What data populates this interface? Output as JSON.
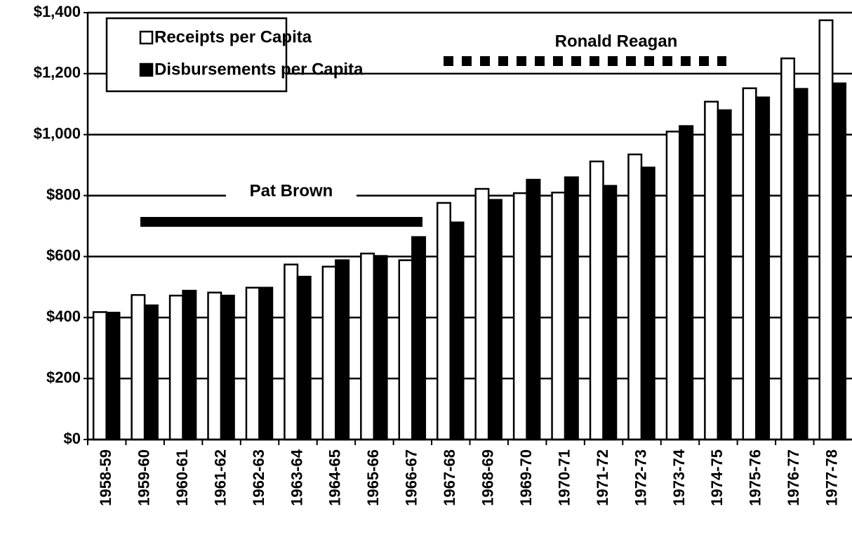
{
  "chart_data": {
    "type": "bar",
    "categories": [
      "1958-59",
      "1959-60",
      "1960-61",
      "1961-62",
      "1962-63",
      "1963-64",
      "1964-65",
      "1965-66",
      "1966-67",
      "1967-68",
      "1968-69",
      "1969-70",
      "1970-71",
      "1971-72",
      "1972-73",
      "1973-74",
      "1974-75",
      "1975-76",
      "1976-77",
      "1977-78"
    ],
    "series": [
      {
        "name": "Receipts per Capita",
        "color": "#ffffff",
        "values": [
          418,
          474,
          472,
          482,
          498,
          574,
          567,
          610,
          588,
          776,
          822,
          808,
          810,
          912,
          935,
          1010,
          1108,
          1152,
          1250,
          1375
        ]
      },
      {
        "name": "Disbursements per Capita",
        "color": "#000000",
        "values": [
          416,
          440,
          488,
          472,
          498,
          534,
          588,
          602,
          664,
          712,
          786,
          852,
          860,
          832,
          892,
          1028,
          1080,
          1122,
          1150,
          1168
        ]
      }
    ],
    "ylim": [
      0,
      1400
    ],
    "yticks": [
      {
        "value": 0,
        "label": "$0"
      },
      {
        "value": 200,
        "label": "$200"
      },
      {
        "value": 400,
        "label": "$400"
      },
      {
        "value": 600,
        "label": "$600"
      },
      {
        "value": 800,
        "label": "$800"
      },
      {
        "value": 1000,
        "label": "$1,000"
      },
      {
        "value": 1200,
        "label": "$1,200"
      },
      {
        "value": 1400,
        "label": "$1,400"
      }
    ],
    "grid": true,
    "legend": "upper left",
    "annotations": [
      "Pat Brown",
      "Ronald Reagan"
    ]
  }
}
